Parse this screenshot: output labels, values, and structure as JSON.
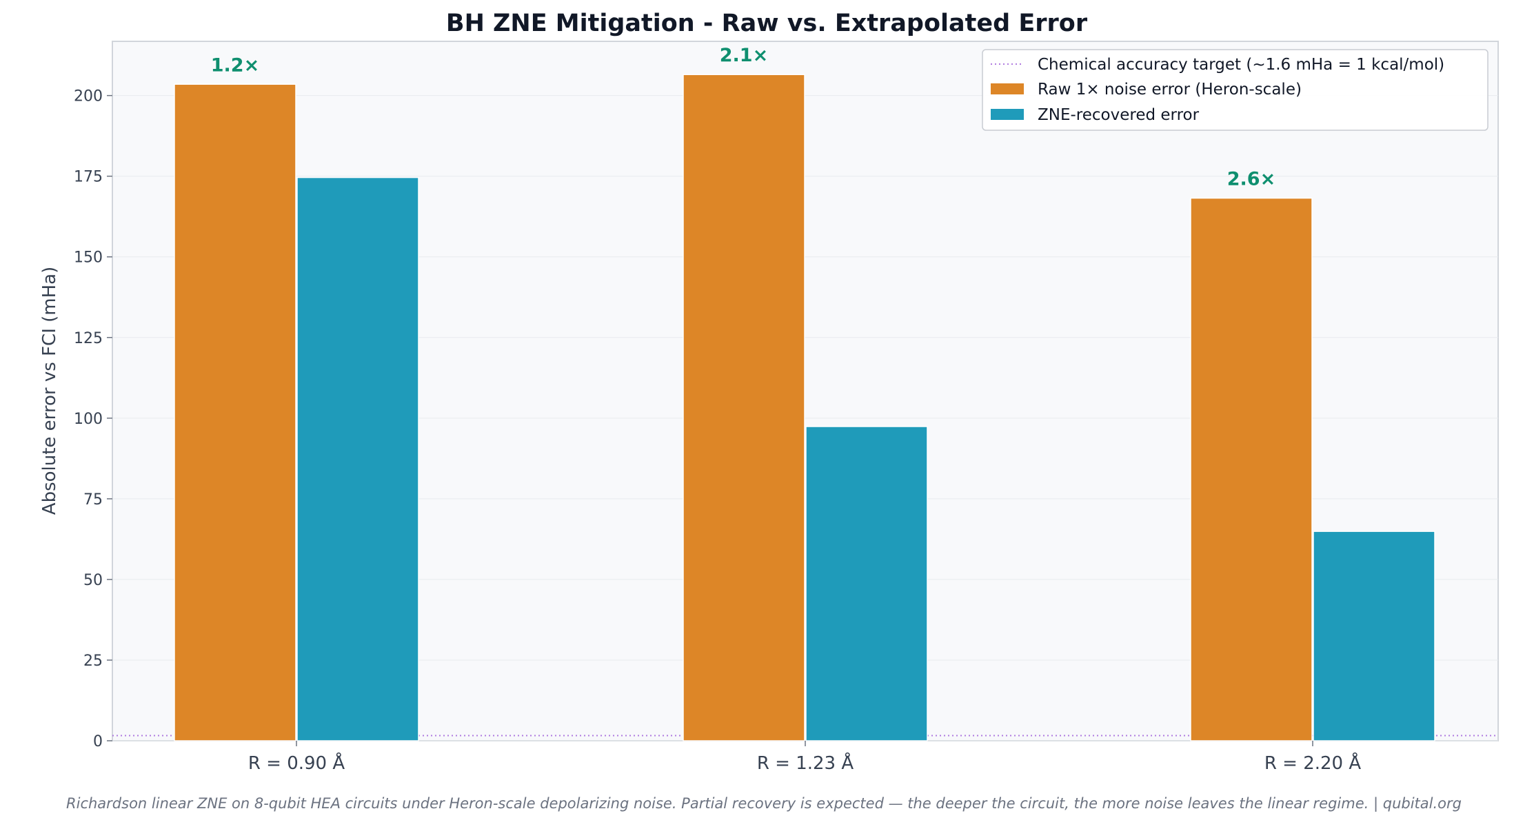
{
  "chart_data": {
    "type": "bar",
    "title": "BH ZNE Mitigation - Raw vs. Extrapolated Error",
    "xlabel": "",
    "ylabel": "Absolute error vs FCI (mHa)",
    "categories": [
      "R = 0.90 Å",
      "R = 1.23 Å",
      "R = 2.20 Å"
    ],
    "series": [
      {
        "name": "Raw 1× noise error (Heron-scale)",
        "values": [
          203.5,
          206.5,
          168.2
        ],
        "color": "#dd8627"
      },
      {
        "name": "ZNE-recovered error",
        "values": [
          174.6,
          97.4,
          64.9
        ],
        "color": "#1f9bba"
      }
    ],
    "ratio_labels": [
      "1.2×",
      "2.1×",
      "2.6×"
    ],
    "reference_line": {
      "label": "Chemical accuracy target (~1.6 mHa = 1 kcal/mol)",
      "value": 1.6,
      "color": "#b07ce0"
    },
    "yticks": [
      "0",
      "25",
      "50",
      "75",
      "100",
      "125",
      "150",
      "175",
      "200"
    ],
    "ylim": [
      0,
      216.8
    ],
    "grid": true,
    "legend_position": "top-right",
    "footnote": "Richardson linear ZNE on 8-qubit HEA circuits under Heron-scale depolarizing noise.  Partial recovery is expected — the deeper the circuit, the more noise leaves the linear regime.  |  qubital.org"
  }
}
